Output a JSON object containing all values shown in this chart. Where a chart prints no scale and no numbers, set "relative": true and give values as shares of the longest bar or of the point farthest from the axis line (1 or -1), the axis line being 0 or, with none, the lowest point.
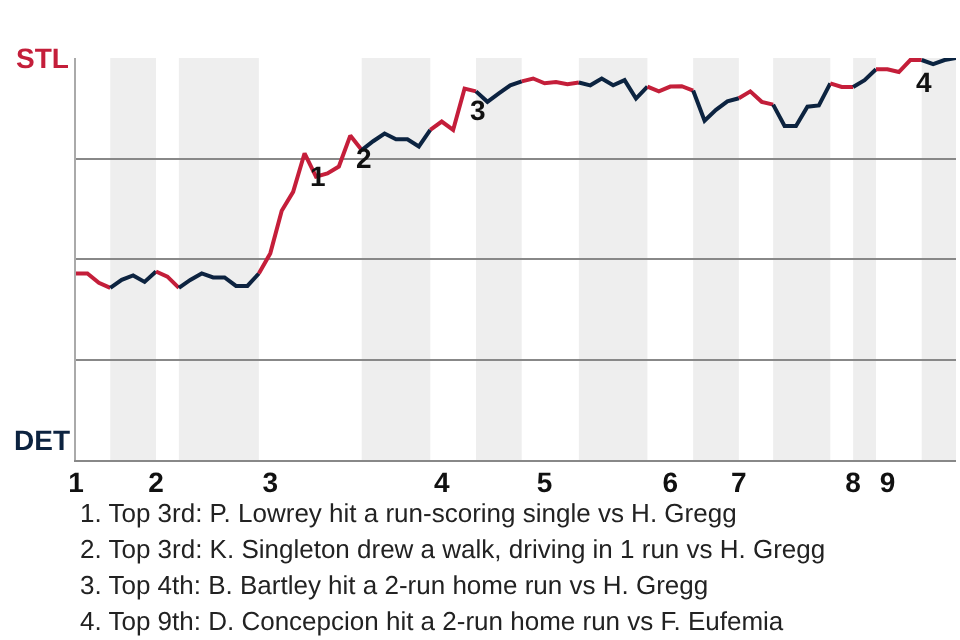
{
  "chart_data": {
    "type": "line",
    "categories": [
      "1",
      null,
      null,
      null,
      null,
      null,
      null,
      "2",
      null,
      null,
      null,
      null,
      null,
      null,
      null,
      null,
      null,
      "3",
      null,
      null,
      null,
      null,
      null,
      null,
      null,
      null,
      null,
      null,
      null,
      null,
      null,
      null,
      "4",
      null,
      null,
      null,
      null,
      null,
      null,
      null,
      null,
      "5",
      null,
      null,
      null,
      null,
      null,
      null,
      null,
      null,
      null,
      null,
      "6",
      null,
      null,
      null,
      null,
      null,
      "7",
      null,
      null,
      null,
      null,
      null,
      null,
      null,
      null,
      null,
      "8",
      null,
      null,
      "9",
      null,
      null,
      null,
      null,
      null,
      null
    ],
    "relative": true,
    "series": [
      {
        "color": "#c41e3a",
        "values": [
          0.464,
          0.464,
          0.441,
          0.428,
          null,
          null,
          null,
          null,
          null,
          null,
          null,
          null,
          null,
          null,
          null,
          null,
          null,
          null,
          null,
          null,
          null,
          null,
          null,
          null,
          null,
          null,
          null,
          null,
          null,
          null,
          null,
          null,
          null,
          null,
          null,
          null,
          null,
          null,
          null,
          null,
          null,
          null,
          null,
          null,
          null,
          null,
          null,
          null,
          null,
          null,
          null,
          null,
          null,
          null,
          null,
          null,
          null,
          null,
          null,
          null,
          null,
          null,
          null,
          null,
          null,
          null,
          null,
          null,
          null,
          null,
          null,
          null,
          null,
          null,
          null,
          null,
          null,
          null
        ]
      },
      {
        "color": "#0c2340",
        "values": [
          null,
          null,
          null,
          0.428,
          0.448,
          0.459,
          0.443,
          0.469,
          null,
          null,
          null,
          null,
          null,
          null,
          null,
          null,
          null,
          null,
          null,
          null,
          null,
          null,
          null,
          null,
          null,
          null,
          null,
          null,
          null,
          null,
          null,
          null,
          null,
          null,
          null,
          null,
          null,
          null,
          null,
          null,
          null,
          null,
          null,
          null,
          null,
          null,
          null,
          null,
          null,
          null,
          null,
          null,
          null,
          null,
          null,
          null,
          null,
          null,
          null,
          null,
          null,
          null,
          null,
          null,
          null,
          null,
          null,
          null,
          null,
          null,
          null,
          null,
          null,
          null,
          null,
          null,
          null,
          null
        ]
      },
      {
        "color": "#c31e3a",
        "values": [
          null,
          null,
          null,
          null,
          null,
          null,
          null,
          0.469,
          0.456,
          0.428,
          null,
          null,
          null,
          null,
          null,
          null,
          null,
          null,
          null,
          null,
          null,
          null,
          null,
          null,
          null,
          null,
          null,
          null,
          null,
          null,
          null,
          null,
          null,
          null,
          null,
          null,
          null,
          null,
          null,
          null,
          null,
          null,
          null,
          null,
          null,
          null,
          null,
          null,
          null,
          null,
          null,
          null,
          null,
          null,
          null,
          null,
          null,
          null,
          null,
          null,
          null,
          null,
          null,
          null,
          null,
          null,
          null,
          null,
          null,
          null,
          null,
          null,
          null,
          null,
          null,
          null,
          null,
          null
        ]
      },
      {
        "color": "#0d2340",
        "values": [
          null,
          null,
          null,
          null,
          null,
          null,
          null,
          null,
          null,
          0.428,
          0.448,
          0.464,
          0.454,
          0.454,
          0.433,
          0.433,
          0.464,
          null,
          null,
          null,
          null,
          null,
          null,
          null,
          null,
          null,
          null,
          null,
          null,
          null,
          null,
          null,
          null,
          null,
          null,
          null,
          null,
          null,
          null,
          null,
          null,
          null,
          null,
          null,
          null,
          null,
          null,
          null,
          null,
          null,
          null,
          null,
          null,
          null,
          null,
          null,
          null,
          null,
          null,
          null,
          null,
          null,
          null,
          null,
          null,
          null,
          null,
          null,
          null,
          null,
          null,
          null,
          null,
          null,
          null,
          null,
          null,
          null
        ]
      },
      {
        "color": "#c51e3a",
        "values": [
          null,
          null,
          null,
          null,
          null,
          null,
          null,
          null,
          null,
          null,
          null,
          null,
          null,
          null,
          null,
          null,
          0.464,
          0.514,
          0.62,
          0.667,
          0.763,
          0.705,
          0.713,
          0.73,
          0.807,
          0.771,
          null,
          null,
          null,
          null,
          null,
          null,
          null,
          null,
          null,
          null,
          null,
          null,
          null,
          null,
          null,
          null,
          null,
          null,
          null,
          null,
          null,
          null,
          null,
          null,
          null,
          null,
          null,
          null,
          null,
          null,
          null,
          null,
          null,
          null,
          null,
          null,
          null,
          null,
          null,
          null,
          null,
          null,
          null,
          null,
          null,
          null,
          null,
          null,
          null,
          null,
          null,
          null
        ]
      },
      {
        "color": "#0b2340",
        "values": [
          null,
          null,
          null,
          null,
          null,
          null,
          null,
          null,
          null,
          null,
          null,
          null,
          null,
          null,
          null,
          null,
          null,
          null,
          null,
          null,
          null,
          null,
          null,
          null,
          null,
          0.771,
          0.793,
          0.812,
          0.798,
          0.798,
          0.78,
          0.821,
          null,
          null,
          null,
          null,
          null,
          null,
          null,
          null,
          null,
          null,
          null,
          null,
          null,
          null,
          null,
          null,
          null,
          null,
          null,
          null,
          null,
          null,
          null,
          null,
          null,
          null,
          null,
          null,
          null,
          null,
          null,
          null,
          null,
          null,
          null,
          null,
          null,
          null,
          null,
          null,
          null,
          null,
          null,
          null,
          null,
          null
        ]
      },
      {
        "color": "#c41d3a",
        "values": [
          null,
          null,
          null,
          null,
          null,
          null,
          null,
          null,
          null,
          null,
          null,
          null,
          null,
          null,
          null,
          null,
          null,
          null,
          null,
          null,
          null,
          null,
          null,
          null,
          null,
          null,
          null,
          null,
          null,
          null,
          null,
          0.821,
          0.842,
          0.821,
          0.924,
          0.917,
          null,
          null,
          null,
          null,
          null,
          null,
          null,
          null,
          null,
          null,
          null,
          null,
          null,
          null,
          null,
          null,
          null,
          null,
          null,
          null,
          null,
          null,
          null,
          null,
          null,
          null,
          null,
          null,
          null,
          null,
          null,
          null,
          null,
          null,
          null,
          null,
          null,
          null,
          null,
          null,
          null,
          null
        ]
      },
      {
        "color": "#0c2240",
        "values": [
          null,
          null,
          null,
          null,
          null,
          null,
          null,
          null,
          null,
          null,
          null,
          null,
          null,
          null,
          null,
          null,
          null,
          null,
          null,
          null,
          null,
          null,
          null,
          null,
          null,
          null,
          null,
          null,
          null,
          null,
          null,
          null,
          null,
          null,
          null,
          0.917,
          0.891,
          0.912,
          0.932,
          0.942,
          null,
          null,
          null,
          null,
          null,
          null,
          null,
          null,
          null,
          null,
          null,
          null,
          null,
          null,
          null,
          null,
          null,
          null,
          null,
          null,
          null,
          null,
          null,
          null,
          null,
          null,
          null,
          null,
          null,
          null,
          null,
          null,
          null,
          null,
          null,
          null,
          null,
          null
        ]
      },
      {
        "color": "#c41f3a",
        "values": [
          null,
          null,
          null,
          null,
          null,
          null,
          null,
          null,
          null,
          null,
          null,
          null,
          null,
          null,
          null,
          null,
          null,
          null,
          null,
          null,
          null,
          null,
          null,
          null,
          null,
          null,
          null,
          null,
          null,
          null,
          null,
          null,
          null,
          null,
          null,
          null,
          null,
          null,
          null,
          0.942,
          0.949,
          0.937,
          0.94,
          0.935,
          0.939,
          null,
          null,
          null,
          null,
          null,
          null,
          null,
          null,
          null,
          null,
          null,
          null,
          null,
          null,
          null,
          null,
          null,
          null,
          null,
          null,
          null,
          null,
          null,
          null,
          null,
          null,
          null,
          null,
          null,
          null,
          null,
          null,
          null
        ]
      },
      {
        "color": "#0c2440",
        "values": [
          null,
          null,
          null,
          null,
          null,
          null,
          null,
          null,
          null,
          null,
          null,
          null,
          null,
          null,
          null,
          null,
          null,
          null,
          null,
          null,
          null,
          null,
          null,
          null,
          null,
          null,
          null,
          null,
          null,
          null,
          null,
          null,
          null,
          null,
          null,
          null,
          null,
          null,
          null,
          null,
          null,
          null,
          null,
          null,
          0.939,
          0.932,
          0.949,
          0.932,
          0.945,
          0.899,
          0.929,
          null,
          null,
          null,
          null,
          null,
          null,
          null,
          null,
          null,
          null,
          null,
          null,
          null,
          null,
          null,
          null,
          null,
          null,
          null,
          null,
          null,
          null,
          null,
          null,
          null,
          null,
          null
        ]
      },
      {
        "color": "#c4203a",
        "values": [
          null,
          null,
          null,
          null,
          null,
          null,
          null,
          null,
          null,
          null,
          null,
          null,
          null,
          null,
          null,
          null,
          null,
          null,
          null,
          null,
          null,
          null,
          null,
          null,
          null,
          null,
          null,
          null,
          null,
          null,
          null,
          null,
          null,
          null,
          null,
          null,
          null,
          null,
          null,
          null,
          null,
          null,
          null,
          null,
          null,
          null,
          null,
          null,
          null,
          null,
          0.929,
          0.917,
          0.929,
          0.93,
          0.919,
          null,
          null,
          null,
          null,
          null,
          null,
          null,
          null,
          null,
          null,
          null,
          null,
          null,
          null,
          null,
          null,
          null,
          null,
          null,
          null,
          null,
          null,
          null
        ]
      },
      {
        "color": "#0c2341",
        "values": [
          null,
          null,
          null,
          null,
          null,
          null,
          null,
          null,
          null,
          null,
          null,
          null,
          null,
          null,
          null,
          null,
          null,
          null,
          null,
          null,
          null,
          null,
          null,
          null,
          null,
          null,
          null,
          null,
          null,
          null,
          null,
          null,
          null,
          null,
          null,
          null,
          null,
          null,
          null,
          null,
          null,
          null,
          null,
          null,
          null,
          null,
          null,
          null,
          null,
          null,
          null,
          null,
          null,
          null,
          0.919,
          0.844,
          0.871,
          0.892,
          0.9,
          null,
          null,
          null,
          null,
          null,
          null,
          null,
          null,
          null,
          null,
          null,
          null,
          null,
          null,
          null,
          null,
          null,
          null,
          null
        ]
      },
      {
        "color": "#c21e3a",
        "values": [
          null,
          null,
          null,
          null,
          null,
          null,
          null,
          null,
          null,
          null,
          null,
          null,
          null,
          null,
          null,
          null,
          null,
          null,
          null,
          null,
          null,
          null,
          null,
          null,
          null,
          null,
          null,
          null,
          null,
          null,
          null,
          null,
          null,
          null,
          null,
          null,
          null,
          null,
          null,
          null,
          null,
          null,
          null,
          null,
          null,
          null,
          null,
          null,
          null,
          null,
          null,
          null,
          null,
          null,
          null,
          null,
          null,
          null,
          0.9,
          0.917,
          0.891,
          0.884,
          null,
          null,
          null,
          null,
          null,
          null,
          null,
          null,
          null,
          null,
          null,
          null,
          null,
          null,
          null,
          null
        ]
      },
      {
        "color": "#0c233f",
        "values": [
          null,
          null,
          null,
          null,
          null,
          null,
          null,
          null,
          null,
          null,
          null,
          null,
          null,
          null,
          null,
          null,
          null,
          null,
          null,
          null,
          null,
          null,
          null,
          null,
          null,
          null,
          null,
          null,
          null,
          null,
          null,
          null,
          null,
          null,
          null,
          null,
          null,
          null,
          null,
          null,
          null,
          null,
          null,
          null,
          null,
          null,
          null,
          null,
          null,
          null,
          null,
          null,
          null,
          null,
          null,
          null,
          null,
          null,
          null,
          null,
          null,
          0.884,
          0.831,
          0.831,
          0.879,
          0.882,
          0.937,
          null,
          null,
          null,
          null,
          null,
          null,
          null,
          null,
          null,
          null,
          null
        ]
      },
      {
        "color": "#c61e3a",
        "values": [
          null,
          null,
          null,
          null,
          null,
          null,
          null,
          null,
          null,
          null,
          null,
          null,
          null,
          null,
          null,
          null,
          null,
          null,
          null,
          null,
          null,
          null,
          null,
          null,
          null,
          null,
          null,
          null,
          null,
          null,
          null,
          null,
          null,
          null,
          null,
          null,
          null,
          null,
          null,
          null,
          null,
          null,
          null,
          null,
          null,
          null,
          null,
          null,
          null,
          null,
          null,
          null,
          null,
          null,
          null,
          null,
          null,
          null,
          null,
          null,
          null,
          null,
          null,
          null,
          null,
          null,
          0.937,
          0.928,
          0.928,
          null,
          null,
          null,
          null,
          null,
          null,
          null,
          null,
          null
        ]
      },
      {
        "color": "#0e2340",
        "values": [
          null,
          null,
          null,
          null,
          null,
          null,
          null,
          null,
          null,
          null,
          null,
          null,
          null,
          null,
          null,
          null,
          null,
          null,
          null,
          null,
          null,
          null,
          null,
          null,
          null,
          null,
          null,
          null,
          null,
          null,
          null,
          null,
          null,
          null,
          null,
          null,
          null,
          null,
          null,
          null,
          null,
          null,
          null,
          null,
          null,
          null,
          null,
          null,
          null,
          null,
          null,
          null,
          null,
          null,
          null,
          null,
          null,
          null,
          null,
          null,
          null,
          null,
          null,
          null,
          null,
          null,
          null,
          null,
          0.928,
          0.945,
          0.972,
          null,
          null,
          null,
          null,
          null,
          null,
          null
        ]
      },
      {
        "color": "#c41e39",
        "values": [
          null,
          null,
          null,
          null,
          null,
          null,
          null,
          null,
          null,
          null,
          null,
          null,
          null,
          null,
          null,
          null,
          null,
          null,
          null,
          null,
          null,
          null,
          null,
          null,
          null,
          null,
          null,
          null,
          null,
          null,
          null,
          null,
          null,
          null,
          null,
          null,
          null,
          null,
          null,
          null,
          null,
          null,
          null,
          null,
          null,
          null,
          null,
          null,
          null,
          null,
          null,
          null,
          null,
          null,
          null,
          null,
          null,
          null,
          null,
          null,
          null,
          null,
          null,
          null,
          null,
          null,
          null,
          null,
          null,
          null,
          0.972,
          0.972,
          0.965,
          0.995,
          0.995,
          null,
          null,
          null
        ]
      },
      {
        "color": "#0a2340",
        "values": [
          null,
          null,
          null,
          null,
          null,
          null,
          null,
          null,
          null,
          null,
          null,
          null,
          null,
          null,
          null,
          null,
          null,
          null,
          null,
          null,
          null,
          null,
          null,
          null,
          null,
          null,
          null,
          null,
          null,
          null,
          null,
          null,
          null,
          null,
          null,
          null,
          null,
          null,
          null,
          null,
          null,
          null,
          null,
          null,
          null,
          null,
          null,
          null,
          null,
          null,
          null,
          null,
          null,
          null,
          null,
          null,
          null,
          null,
          null,
          null,
          null,
          null,
          null,
          null,
          null,
          null,
          null,
          null,
          null,
          null,
          null,
          null,
          null,
          null,
          0.995,
          0.985,
          0.995,
          1.0
        ]
      }
    ],
    "grid": "y",
    "marker": "none",
    "line_style": "solid",
    "annotations": [
      "STL",
      "DET",
      {
        "text": "1",
        "y": 0.763
      },
      {
        "text": "2",
        "y": 0.807
      },
      {
        "text": "3",
        "y": 0.924
      },
      {
        "text": "4",
        "y": 0.995
      },
      "1. Top 3rd: P. Lowrey hit a run-scoring single vs H. Gregg",
      "2. Top 3rd: K. Singleton drew a walk, driving in 1 run vs H. Gregg",
      "3. Top 4th: B. Bartley hit a 2-run home run vs H. Gregg",
      "4. Top 9th: D. Concepcion hit a 2-run home run vs F. Eufemia"
    ]
  }
}
